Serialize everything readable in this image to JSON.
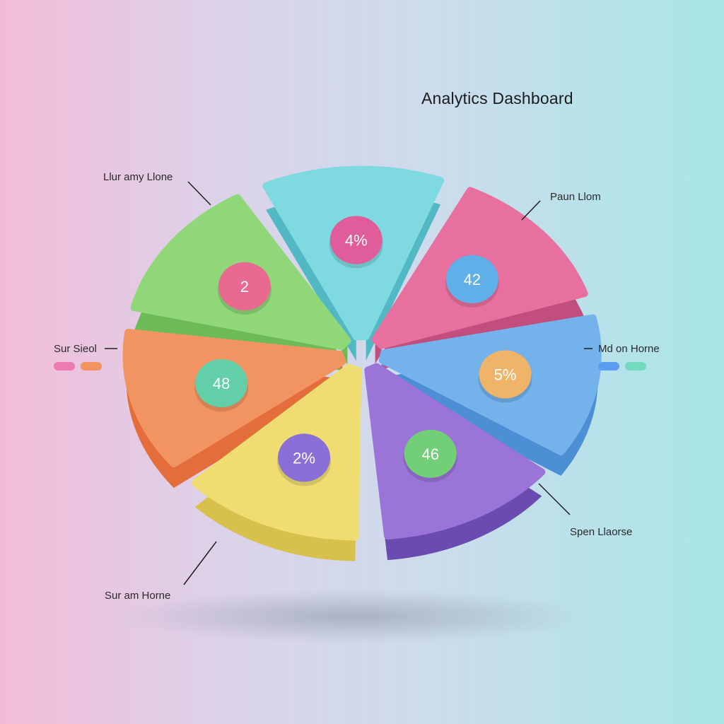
{
  "title": "Analytics Dashboard",
  "chart_data": {
    "type": "pie",
    "title": "Analytics Dashboard",
    "slices": [
      {
        "color": "#7ed9e0",
        "side": "#52b9c4",
        "badge": "4%",
        "badge_color": "#e05c9a"
      },
      {
        "color": "#e8709e",
        "side": "#c24e7d",
        "badge": "42",
        "badge_color": "#5fb0e8"
      },
      {
        "color": "#74b2ec",
        "side": "#4d8fd4",
        "badge": "5%",
        "badge_color": "#efb468"
      },
      {
        "color": "#9a74d6",
        "side": "#6a4bb0",
        "badge": "46",
        "badge_color": "#72cf78"
      },
      {
        "color": "#f0dd72",
        "side": "#d7c04c",
        "badge": "2%",
        "badge_color": "#8a6fd6"
      },
      {
        "color": "#f29362",
        "side": "#e36e3c",
        "badge": "48",
        "badge_color": "#63cfa8"
      },
      {
        "color": "#90d77a",
        "side": "#6cbb57",
        "badge": "2",
        "badge_color": "#e86a90"
      }
    ]
  },
  "labels": {
    "top_left": "Llur amy Llone",
    "top_right": "Paun Llom",
    "mid_left": "Sur Sieol",
    "mid_right": "Md on Horne",
    "bottom_right": "Spen Llaorse",
    "bottom_left": "Sur am Horne"
  },
  "legend_left": [
    "#ec7bb0",
    "#f29362"
  ],
  "legend_right": [
    "#5b9cf0",
    "#73dbbd"
  ]
}
